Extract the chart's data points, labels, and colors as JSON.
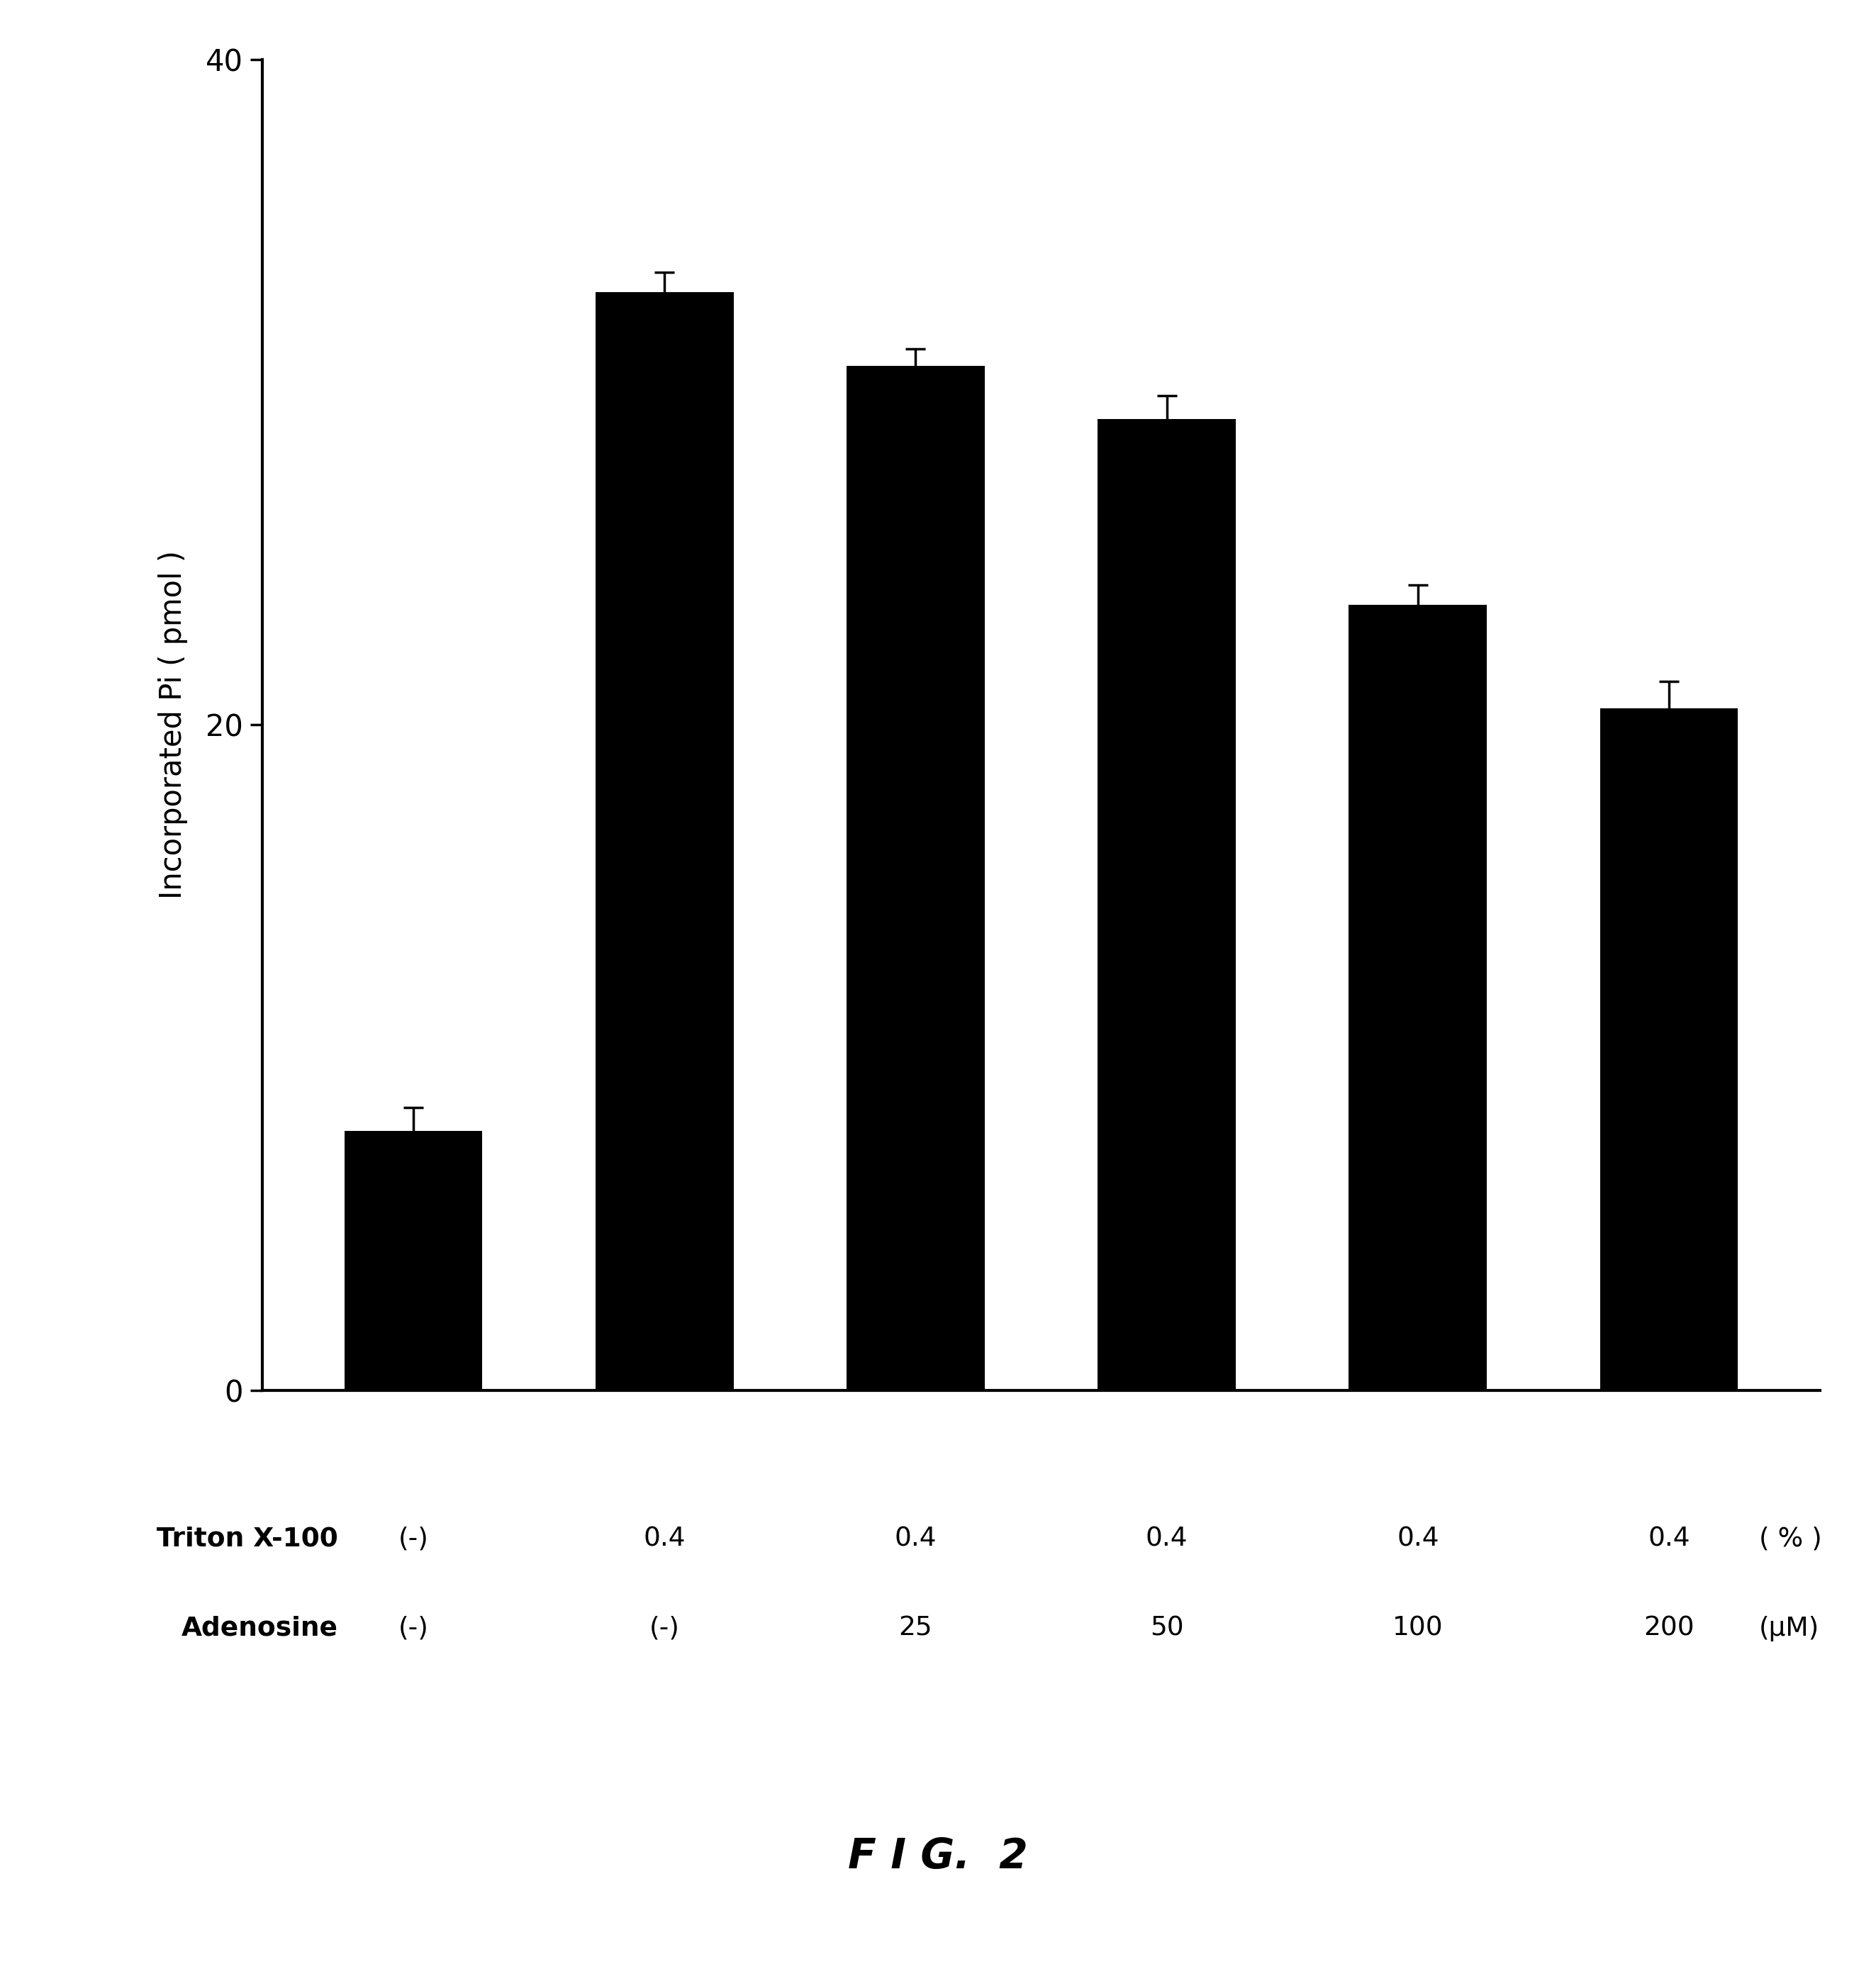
{
  "bar_values": [
    7.8,
    33.0,
    30.8,
    29.2,
    23.6,
    20.5
  ],
  "bar_errors": [
    0.7,
    0.6,
    0.5,
    0.7,
    0.6,
    0.8
  ],
  "bar_color": "#000000",
  "bar_width": 0.55,
  "bar_positions": [
    0,
    1,
    2,
    3,
    4,
    5
  ],
  "ylim": [
    0,
    40
  ],
  "yticks": [
    0,
    20,
    40
  ],
  "ylabel": "Incorporated Pi ( pmol )",
  "ylabel_fontsize": 30,
  "tick_fontsize": 30,
  "background_color": "#ffffff",
  "spine_linewidth": 3.0,
  "triton_row_label": "Triton X-100",
  "adenosine_row_label": "Adenosine",
  "triton_values": [
    "(-)",
    "0.4",
    "0.4",
    "0.4",
    "0.4",
    "0.4"
  ],
  "triton_unit": "( % )",
  "adenosine_values": [
    "(-)",
    "(-)",
    "25",
    "50",
    "100",
    "200"
  ],
  "adenosine_unit": "(μM)",
  "figure_title": "F I G.  2",
  "figure_title_fontsize": 42,
  "annotation_fontsize": 27,
  "label_fontsize": 27,
  "capsize": 10,
  "elinewidth": 2.5,
  "capthick": 2.5,
  "xlim": [
    -0.6,
    5.6
  ]
}
